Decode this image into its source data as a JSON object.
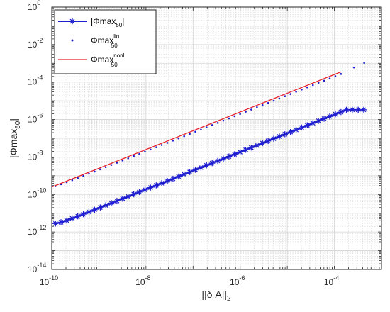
{
  "chart_data": {
    "type": "line",
    "xscale": "log",
    "yscale": "log",
    "xlim": [
      1e-10,
      0.001
    ],
    "ylim": [
      1e-14,
      1
    ],
    "grid": true,
    "legend_position": "top-left",
    "xlabel": {
      "main": "||δ A||",
      "sub": "2"
    },
    "ylabel": {
      "main": "|Φmax",
      "sub": "50",
      "end": "|"
    },
    "x_ticks": [
      {
        "value": 1e-10,
        "base": "10",
        "exp": "-10"
      },
      {
        "value": 1e-08,
        "base": "10",
        "exp": "-8"
      },
      {
        "value": 1e-06,
        "base": "10",
        "exp": "-6"
      },
      {
        "value": 0.0001,
        "base": "10",
        "exp": "-4"
      }
    ],
    "y_ticks": [
      {
        "value": 1,
        "base": "10",
        "exp": "0"
      },
      {
        "value": 0.01,
        "base": "10",
        "exp": "-2"
      },
      {
        "value": 0.0001,
        "base": "10",
        "exp": "-4"
      },
      {
        "value": 1e-06,
        "base": "10",
        "exp": "-6"
      },
      {
        "value": 1e-08,
        "base": "10",
        "exp": "-8"
      },
      {
        "value": 1e-10,
        "base": "10",
        "exp": "-10"
      },
      {
        "value": 1e-12,
        "base": "10",
        "exp": "-12"
      },
      {
        "value": 1e-14,
        "base": "10",
        "exp": "-14"
      }
    ],
    "series": [
      {
        "label_main": "|Φmax",
        "label_sub": "50",
        "label_sup": "",
        "label_end": "|",
        "color": "#1f1fd0",
        "style": "line-star",
        "x": [
          1.2e-10,
          1.57e-10,
          2.07e-10,
          2.72e-10,
          3.57e-10,
          4.7e-10,
          6.17e-10,
          8.12e-10,
          1.07e-09,
          1.4e-09,
          1.84e-09,
          2.42e-09,
          3.19e-09,
          4.19e-09,
          5.51e-09,
          7.24e-09,
          9.52e-09,
          1.25e-08,
          1.65e-08,
          2.16e-08,
          2.85e-08,
          3.74e-08,
          4.92e-08,
          6.46e-08,
          8.5e-08,
          1.12e-07,
          1.47e-07,
          1.93e-07,
          2.54e-07,
          3.34e-07,
          4.39e-07,
          5.77e-07,
          7.58e-07,
          9.97e-07,
          1.31e-06,
          1.72e-06,
          2.27e-06,
          2.98e-06,
          3.92e-06,
          5.15e-06,
          6.77e-06,
          8.9e-06,
          1.17e-05,
          1.54e-05,
          2.02e-05,
          2.66e-05,
          3.5e-05,
          4.6e-05,
          6.04e-05,
          7.95e-05,
          0.000105,
          0.000138,
          0.00018,
          0.00024,
          0.00032,
          0.00042
        ],
        "y": [
          2.8e-12,
          3.3e-12,
          4.1e-12,
          5.3e-12,
          6.8e-12,
          8.9e-12,
          1.17e-11,
          1.53e-11,
          2.02e-11,
          2.64e-11,
          3.48e-11,
          4.55e-11,
          6e-11,
          7.8e-11,
          1.03e-10,
          1.35e-10,
          1.77e-10,
          2.33e-10,
          3.07e-10,
          4e-10,
          5.3e-10,
          6.9e-10,
          9.1e-10,
          1.2e-09,
          1.58e-09,
          2.07e-09,
          2.73e-09,
          3.58e-09,
          4.7e-09,
          6.2e-09,
          8.1e-09,
          1.07e-08,
          1.4e-08,
          1.84e-08,
          2.42e-08,
          3.17e-08,
          4.17e-08,
          5.5e-08,
          7.2e-08,
          9.5e-08,
          1.25e-07,
          1.64e-07,
          2.16e-07,
          2.83e-07,
          3.72e-07,
          4.9e-07,
          6.4e-07,
          8.5e-07,
          1.11e-06,
          1.46e-06,
          1.92e-06,
          2.5e-06,
          3.3e-06,
          3.3e-06,
          3.3e-06,
          3.3e-06
        ]
      },
      {
        "label_main": "Φmax",
        "label_sub": "50",
        "label_sup": "lin",
        "label_end": "",
        "color": "#1f1fd0",
        "style": "dots",
        "x": [
          1.2e-10,
          1.57e-10,
          2.07e-10,
          2.72e-10,
          3.57e-10,
          4.7e-10,
          6.17e-10,
          8.12e-10,
          1.07e-09,
          1.4e-09,
          1.84e-09,
          2.42e-09,
          3.19e-09,
          4.19e-09,
          5.51e-09,
          7.24e-09,
          9.52e-09,
          1.25e-08,
          1.65e-08,
          2.16e-08,
          2.85e-08,
          3.74e-08,
          4.92e-08,
          6.46e-08,
          8.5e-08,
          1.12e-07,
          1.47e-07,
          1.93e-07,
          2.54e-07,
          3.34e-07,
          4.39e-07,
          5.77e-07,
          7.58e-07,
          9.97e-07,
          1.31e-06,
          1.72e-06,
          2.27e-06,
          2.98e-06,
          3.92e-06,
          5.15e-06,
          6.77e-06,
          8.9e-06,
          1.17e-05,
          1.54e-05,
          2.02e-05,
          2.66e-05,
          3.5e-05,
          4.6e-05,
          6.04e-05,
          7.95e-05,
          0.000105,
          0.000138,
          0.00026,
          0.00043
        ],
        "y": [
          2.8e-10,
          3.5e-10,
          4.5e-10,
          5.8e-10,
          7.5e-10,
          9.8e-10,
          1.28e-09,
          1.67e-09,
          2.19e-09,
          2.87e-09,
          3.77e-09,
          4.94e-09,
          6.5e-09,
          8.5e-09,
          1.12e-08,
          1.47e-08,
          1.93e-08,
          2.53e-08,
          3.33e-08,
          4.36e-08,
          5.7e-08,
          7.5e-08,
          9.8e-08,
          1.29e-07,
          1.7e-07,
          2.23e-07,
          2.93e-07,
          3.84e-07,
          5.05e-07,
          6.6e-07,
          8.7e-07,
          1.15e-06,
          1.5e-06,
          1.97e-06,
          2.6e-06,
          3.4e-06,
          4.5e-06,
          5.9e-06,
          7.7e-06,
          1.01e-05,
          1.33e-05,
          1.75e-05,
          2.3e-05,
          3.03e-05,
          3.98e-05,
          5.2e-05,
          6.9e-05,
          9e-05,
          0.000118,
          0.000155,
          0.000205,
          0.00027,
          0.0006,
          0.00105
        ]
      },
      {
        "label_main": "Φmax",
        "label_sub": "50",
        "label_sup": "nonl",
        "label_end": "",
        "color": "#e8212a",
        "style": "line",
        "x": [
          1e-10,
          0.000138
        ],
        "y": [
          2.5e-10,
          0.00035
        ]
      }
    ]
  }
}
